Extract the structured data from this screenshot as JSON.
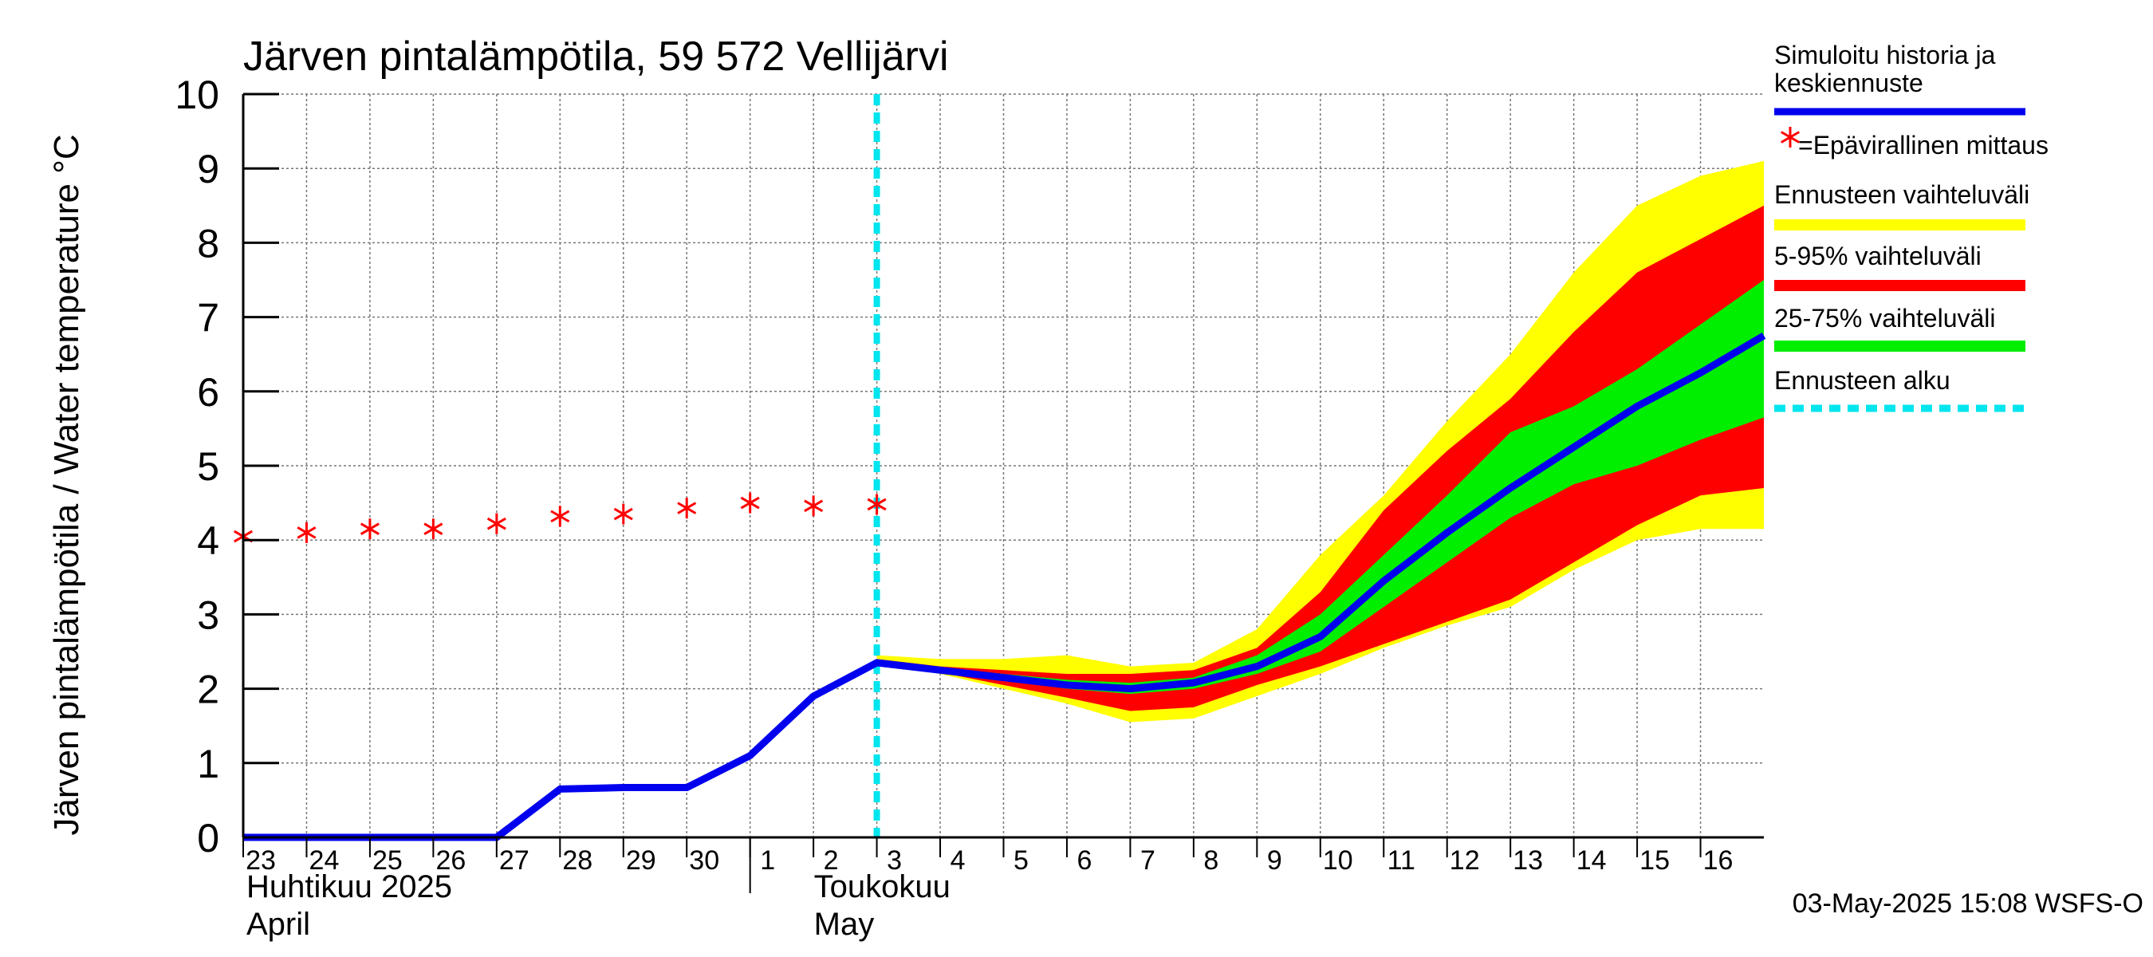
{
  "chart_data": {
    "type": "line",
    "title": "Järven pintalämpötila, 59 572 Vellijärvi",
    "ylabel": "Järven pintalämpötila / Water temperature °C",
    "ylim": [
      0,
      10
    ],
    "y_ticks": [
      0,
      1,
      2,
      3,
      4,
      5,
      6,
      7,
      8,
      9,
      10
    ],
    "x_start": "2025-04-23",
    "x_end": "2025-05-17",
    "x_tick_labels": [
      "23",
      "24",
      "25",
      "26",
      "27",
      "28",
      "29",
      "30",
      "1",
      "2",
      "3",
      "4",
      "5",
      "6",
      "7",
      "8",
      "9",
      "10",
      "11",
      "12",
      "13",
      "14",
      "15",
      "16"
    ],
    "month_labels": [
      {
        "line1": "Huhtikuu  2025",
        "line2": "April",
        "at": "2025-04-23"
      },
      {
        "line1": "Toukokuu",
        "line2": "May",
        "at": "2025-05-02"
      }
    ],
    "forecast_start": "2025-05-03",
    "grid": true,
    "legend_position": "right",
    "colors": {
      "history": "#0000ee",
      "measurement": "#ff0000",
      "range_full": "#ffff00",
      "range_5_95": "#ff0000",
      "range_25_75": "#00ee00",
      "forecast_start": "#00e5ee"
    },
    "series": [
      {
        "name": "Simuloitu historia ja keskiennuste",
        "x": [
          "2025-04-23",
          "2025-04-24",
          "2025-04-25",
          "2025-04-26",
          "2025-04-27",
          "2025-04-28",
          "2025-04-29",
          "2025-04-30",
          "2025-05-01",
          "2025-05-02",
          "2025-05-03",
          "2025-05-04",
          "2025-05-05",
          "2025-05-06",
          "2025-05-07",
          "2025-05-08",
          "2025-05-09",
          "2025-05-10",
          "2025-05-11",
          "2025-05-12",
          "2025-05-13",
          "2025-05-14",
          "2025-05-15",
          "2025-05-16",
          "2025-05-17"
        ],
        "y": [
          0,
          0,
          0,
          0,
          0,
          0.65,
          0.67,
          0.67,
          1.1,
          1.9,
          2.35,
          2.25,
          2.15,
          2.05,
          2.0,
          2.08,
          2.3,
          2.7,
          3.45,
          4.1,
          4.7,
          5.25,
          5.8,
          6.25,
          6.75
        ]
      },
      {
        "name": "=Epävirallinen mittaus",
        "x": [
          "2025-04-23",
          "2025-04-24",
          "2025-04-25",
          "2025-04-26",
          "2025-04-27",
          "2025-04-28",
          "2025-04-29",
          "2025-04-30",
          "2025-05-01",
          "2025-05-02",
          "2025-05-03"
        ],
        "y": [
          4.05,
          4.1,
          4.15,
          4.15,
          4.22,
          4.32,
          4.35,
          4.43,
          4.5,
          4.46,
          4.48
        ]
      }
    ],
    "bands": {
      "x": [
        "2025-05-03",
        "2025-05-04",
        "2025-05-05",
        "2025-05-06",
        "2025-05-07",
        "2025-05-08",
        "2025-05-09",
        "2025-05-10",
        "2025-05-11",
        "2025-05-12",
        "2025-05-13",
        "2025-05-14",
        "2025-05-15",
        "2025-05-16",
        "2025-05-17"
      ],
      "full": {
        "name": "Ennusteen vaihteluväli",
        "low": [
          2.35,
          2.2,
          2.0,
          1.8,
          1.55,
          1.6,
          1.9,
          2.2,
          2.55,
          2.85,
          3.1,
          3.6,
          4.0,
          4.15,
          4.15
        ],
        "high": [
          2.45,
          2.4,
          2.4,
          2.45,
          2.3,
          2.35,
          2.8,
          3.8,
          4.6,
          5.6,
          6.5,
          7.6,
          8.5,
          8.9,
          9.1
        ]
      },
      "p5_95": {
        "name": "5-95% vaihteluväli",
        "low": [
          2.35,
          2.22,
          2.05,
          1.88,
          1.7,
          1.75,
          2.05,
          2.3,
          2.6,
          2.9,
          3.2,
          3.7,
          4.2,
          4.6,
          4.7
        ],
        "high": [
          2.4,
          2.3,
          2.25,
          2.2,
          2.2,
          2.25,
          2.55,
          3.3,
          4.4,
          5.2,
          5.9,
          6.8,
          7.6,
          8.05,
          8.5
        ]
      },
      "p25_75": {
        "name": "25-75% vaihteluväli",
        "low": [
          2.35,
          2.25,
          2.12,
          2.0,
          1.93,
          2.0,
          2.2,
          2.5,
          3.1,
          3.7,
          4.3,
          4.75,
          5.0,
          5.35,
          5.65
        ],
        "high": [
          2.38,
          2.28,
          2.2,
          2.12,
          2.08,
          2.15,
          2.45,
          3.0,
          3.8,
          4.6,
          5.45,
          5.8,
          6.3,
          6.9,
          7.5
        ]
      }
    },
    "legend": [
      {
        "label": "Simuloitu historia ja keskiennuste",
        "kind": "line",
        "color": "#0000ee"
      },
      {
        "label": "=Epävirallinen mittaus",
        "kind": "star",
        "color": "#ff0000"
      },
      {
        "label": "Ennusteen vaihteluväli",
        "kind": "bar",
        "color": "#ffff00"
      },
      {
        "label": "5-95% vaihteluväli",
        "kind": "bar",
        "color": "#ff0000"
      },
      {
        "label": "25-75% vaihteluväli",
        "kind": "bar",
        "color": "#00ee00"
      },
      {
        "label": "Ennusteen alku",
        "kind": "dash",
        "color": "#00e5ee"
      }
    ],
    "footer": "03-May-2025 15:08 WSFS-O"
  }
}
